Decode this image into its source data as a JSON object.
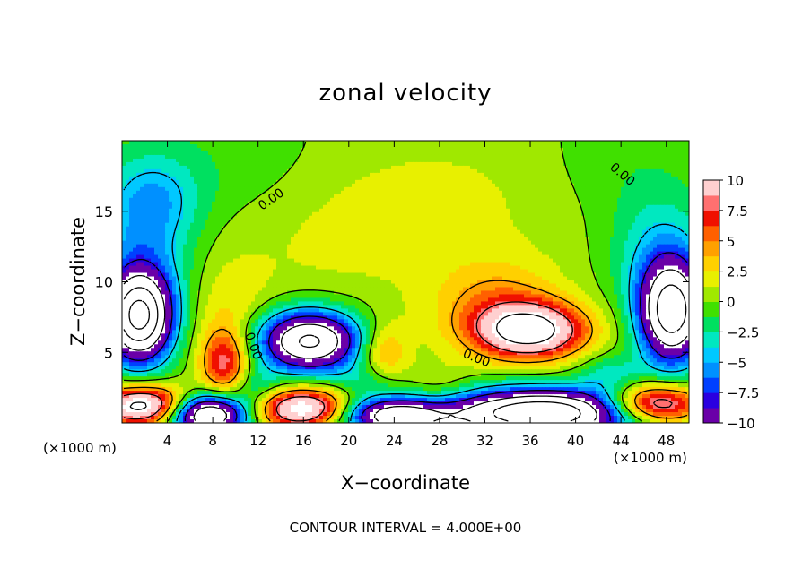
{
  "chart_data": {
    "type": "heatmap",
    "title": "zonal velocity",
    "xlabel": "X−coordinate",
    "ylabel": "Z−coordinate",
    "x_unit_left": "(×1000 m)",
    "x_unit_right": "(×1000 m)",
    "footer": "CONTOUR INTERVAL = 4.000E+00",
    "xlim": [
      0,
      50
    ],
    "ylim": [
      0,
      20
    ],
    "x_ticks": [
      4,
      8,
      12,
      16,
      20,
      24,
      28,
      32,
      36,
      40,
      44,
      48
    ],
    "y_ticks": [
      5,
      10,
      15
    ],
    "colorbar": {
      "range": [
        -10,
        10
      ],
      "ticks": [
        "10",
        "7.5",
        "5",
        "2.5",
        "0",
        "−2.5",
        "−5",
        "−7.5",
        "−10"
      ],
      "colors": [
        "#6a00a8",
        "#2a00e0",
        "#0040ff",
        "#0090ff",
        "#00c8ff",
        "#00e8c0",
        "#00e060",
        "#40e000",
        "#a0e800",
        "#e8f000",
        "#ffd000",
        "#ffa000",
        "#ff6000",
        "#f01000",
        "#ff7070",
        "#ffd0d0"
      ]
    },
    "contour_labels": [
      "0.00",
      "0.00",
      "0.00",
      "0.00"
    ],
    "blobs": [
      {
        "x": 1.5,
        "z": 7.5,
        "sx": 2.0,
        "sz": 2.2,
        "v": -20
      },
      {
        "x": 2.0,
        "z": 12.5,
        "sx": 3.0,
        "sz": 4.0,
        "v": -4.5
      },
      {
        "x": 3.0,
        "z": 16.0,
        "sx": 3.0,
        "sz": 2.0,
        "v": -2.5
      },
      {
        "x": 16.5,
        "z": 5.8,
        "sx": 3.2,
        "sz": 1.5,
        "v": -17
      },
      {
        "x": 48.5,
        "z": 7.8,
        "sx": 2.0,
        "sz": 2.5,
        "v": -18
      },
      {
        "x": 47.5,
        "z": 12.0,
        "sx": 3.0,
        "sz": 3.0,
        "v": -4
      },
      {
        "x": 36.0,
        "z": 6.5,
        "sx": 3.5,
        "sz": 1.4,
        "v": 13,
        "rot": -32
      },
      {
        "x": 33.0,
        "z": 8.5,
        "sx": 4.0,
        "sz": 2.2,
        "v": 4
      },
      {
        "x": 9.0,
        "z": 4.3,
        "sx": 1.4,
        "sz": 1.6,
        "v": 7
      },
      {
        "x": 9.5,
        "z": 7.0,
        "sx": 2.5,
        "sz": 3.0,
        "v": 2.5
      },
      {
        "x": 23.0,
        "z": 4.8,
        "sx": 1.6,
        "sz": 1.6,
        "v": 5
      },
      {
        "x": 2.0,
        "z": 1.2,
        "sx": 3.0,
        "sz": 1.0,
        "v": 14
      },
      {
        "x": 16.0,
        "z": 1.0,
        "sx": 3.0,
        "sz": 1.0,
        "v": 13
      },
      {
        "x": 47.0,
        "z": 1.3,
        "sx": 3.0,
        "sz": 1.0,
        "v": 13
      },
      {
        "x": 7.5,
        "z": 0.6,
        "sx": 2.5,
        "sz": 1.0,
        "v": -18
      },
      {
        "x": 24.0,
        "z": 0.5,
        "sx": 3.5,
        "sz": 0.9,
        "v": -14
      },
      {
        "x": 37.0,
        "z": 0.7,
        "sx": 6.0,
        "sz": 1.2,
        "v": -20
      },
      {
        "x": 28.0,
        "z": 2.0,
        "sx": 2.0,
        "sz": 1.5,
        "v": 2
      },
      {
        "x": 12.0,
        "z": 2.5,
        "sx": 1.5,
        "sz": 1.0,
        "v": -3
      },
      {
        "x": 22.0,
        "z": 3.0,
        "sx": 2.0,
        "sz": 1.0,
        "v": -3
      },
      {
        "x": 43.0,
        "z": 3.5,
        "sx": 2.0,
        "sz": 1.0,
        "v": -3
      },
      {
        "x": 18.0,
        "z": 13.0,
        "sx": 8.0,
        "sz": 4.0,
        "v": 1.2
      },
      {
        "x": 30.0,
        "z": 16.0,
        "sx": 10.0,
        "sz": 4.0,
        "v": 1.3
      },
      {
        "x": 10.0,
        "z": 18.0,
        "sx": 6.0,
        "sz": 3.0,
        "v": -1.2
      },
      {
        "x": 44.0,
        "z": 18.0,
        "sx": 5.0,
        "sz": 3.0,
        "v": -1.2
      }
    ]
  }
}
